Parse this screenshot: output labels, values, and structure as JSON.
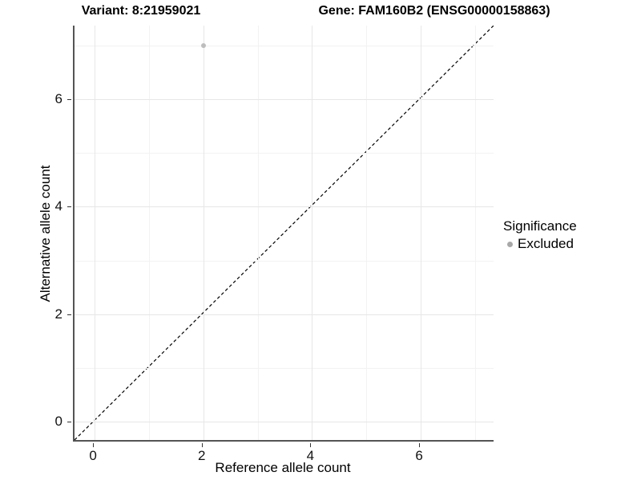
{
  "titles": {
    "variant": "Variant: 8:21959021",
    "gene": "Gene: FAM160B2 (ENSG00000158863)"
  },
  "chart_data": {
    "type": "scatter",
    "xlabel": "Reference allele count",
    "ylabel": "Alternative allele count",
    "xlim": [
      -0.37,
      7.37
    ],
    "ylim": [
      -0.37,
      7.37
    ],
    "x_major_ticks": [
      0,
      2,
      4,
      6
    ],
    "y_major_ticks": [
      0,
      2,
      4,
      6
    ],
    "x_minor_gridlines": [
      1,
      3,
      5,
      7
    ],
    "y_minor_gridlines": [
      1,
      3,
      5,
      7
    ],
    "grid": true,
    "series": [
      {
        "name": "Excluded",
        "color": "#bdbdbd",
        "points": [
          {
            "x": 2,
            "y": 7
          }
        ]
      }
    ],
    "reference_line": {
      "type": "identity",
      "style": "dashed",
      "color": "#000000",
      "from": [
        -0.37,
        -0.37
      ],
      "to": [
        7.37,
        7.37
      ]
    },
    "legend": {
      "position": "right",
      "title": "Significance",
      "entries": [
        {
          "label": "Excluded",
          "color": "#a8a8a8",
          "marker": "dot"
        }
      ]
    }
  },
  "colors": {
    "background": "#ffffff",
    "axis_line": "#545454",
    "major_grid": "#e7e7e7",
    "minor_grid": "#f2f2f2",
    "tick": "#333333",
    "text": "#000000"
  }
}
